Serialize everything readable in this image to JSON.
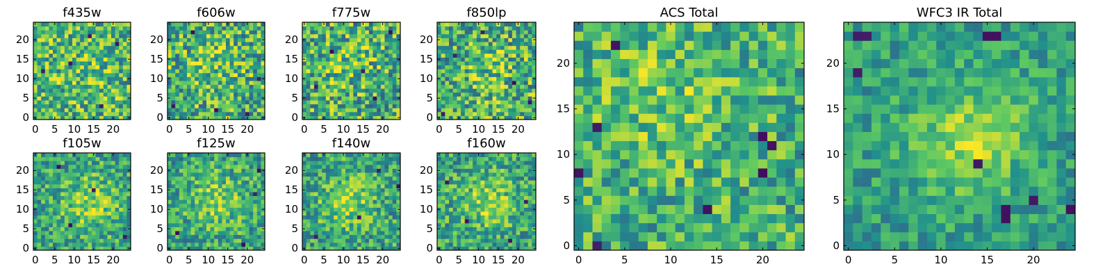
{
  "colormap": {
    "name": "viridis",
    "stops": [
      "#440154",
      "#3b528b",
      "#21918c",
      "#5ec962",
      "#fde725"
    ]
  },
  "chart_data": [
    {
      "type": "heatmap",
      "title": "f435w",
      "grid_size": 25,
      "xticks": [
        0,
        5,
        10,
        15,
        20
      ],
      "yticks": [
        0,
        5,
        10,
        15,
        20
      ],
      "xlim": [
        -0.5,
        24.5
      ],
      "ylim": [
        -0.5,
        24.5
      ],
      "value_range": [
        0,
        1
      ],
      "pattern": {
        "seed": 435,
        "mean": 0.66,
        "noise": 0.32,
        "bump": 0.05,
        "bump_center": [
          12,
          12
        ],
        "bump_sigma": 6,
        "dark_spots": [
          [
            2,
            12
          ],
          [
            9,
            14
          ],
          [
            17,
            3
          ],
          [
            21,
            19
          ],
          [
            14,
            21
          ]
        ]
      }
    },
    {
      "type": "heatmap",
      "title": "f606w",
      "grid_size": 25,
      "xticks": [
        0,
        5,
        10,
        15,
        20
      ],
      "yticks": [
        0,
        5,
        10,
        15,
        20
      ],
      "xlim": [
        -0.5,
        24.5
      ],
      "ylim": [
        -0.5,
        24.5
      ],
      "value_range": [
        0,
        1
      ],
      "pattern": {
        "seed": 606,
        "mean": 0.64,
        "noise": 0.34,
        "bump": 0.1,
        "bump_center": [
          11,
          14
        ],
        "bump_sigma": 5,
        "dark_spots": [
          [
            1,
            3
          ],
          [
            6,
            22
          ],
          [
            20,
            1
          ],
          [
            23,
            10
          ],
          [
            12,
            2
          ]
        ]
      }
    },
    {
      "type": "heatmap",
      "title": "f775w",
      "grid_size": 25,
      "xticks": [
        0,
        5,
        10,
        15,
        20
      ],
      "yticks": [
        0,
        5,
        10,
        15,
        20
      ],
      "xlim": [
        -0.5,
        24.5
      ],
      "ylim": [
        -0.5,
        24.5
      ],
      "value_range": [
        0,
        1
      ],
      "pattern": {
        "seed": 775,
        "mean": 0.63,
        "noise": 0.34,
        "bump": 0.1,
        "bump_center": [
          11,
          13
        ],
        "bump_sigma": 5,
        "dark_spots": [
          [
            3,
            8
          ],
          [
            7,
            17
          ],
          [
            18,
            5
          ],
          [
            22,
            22
          ],
          [
            15,
            12
          ]
        ]
      }
    },
    {
      "type": "heatmap",
      "title": "f850lp",
      "grid_size": 25,
      "xticks": [
        0,
        5,
        10,
        15,
        20
      ],
      "yticks": [
        0,
        5,
        10,
        15,
        20
      ],
      "xlim": [
        -0.5,
        24.5
      ],
      "ylim": [
        -0.5,
        24.5
      ],
      "value_range": [
        0,
        1
      ],
      "pattern": {
        "seed": 850,
        "mean": 0.63,
        "noise": 0.34,
        "bump": 0.1,
        "bump_center": [
          12,
          12
        ],
        "bump_sigma": 5,
        "dark_spots": [
          [
            1,
            1
          ],
          [
            11,
            22
          ],
          [
            19,
            9
          ],
          [
            4,
            16
          ],
          [
            23,
            4
          ]
        ]
      }
    },
    {
      "type": "heatmap",
      "title": "f105w",
      "grid_size": 25,
      "xticks": [
        0,
        5,
        10,
        15,
        20
      ],
      "yticks": [
        0,
        5,
        10,
        15,
        20
      ],
      "xlim": [
        -0.5,
        24.5
      ],
      "ylim": [
        -0.5,
        24.5
      ],
      "value_range": [
        0,
        1
      ],
      "pattern": {
        "seed": 105,
        "mean": 0.58,
        "noise": 0.26,
        "bump": 0.25,
        "bump_center": [
          14,
          12
        ],
        "bump_sigma": 5,
        "dark_spots": [
          [
            23,
            3
          ],
          [
            9,
            6
          ],
          [
            15,
            15
          ],
          [
            6,
            21
          ]
        ]
      }
    },
    {
      "type": "heatmap",
      "title": "f125w",
      "grid_size": 25,
      "xticks": [
        0,
        5,
        10,
        15,
        20
      ],
      "yticks": [
        0,
        5,
        10,
        15,
        20
      ],
      "xlim": [
        -0.5,
        24.5
      ],
      "ylim": [
        -0.5,
        24.5
      ],
      "value_range": [
        0,
        1
      ],
      "pattern": {
        "seed": 125,
        "mean": 0.58,
        "noise": 0.26,
        "bump": 0.25,
        "bump_center": [
          12,
          12
        ],
        "bump_sigma": 5,
        "dark_spots": [
          [
            22,
            14
          ],
          [
            23,
            20
          ],
          [
            2,
            4
          ],
          [
            19,
            1
          ]
        ]
      }
    },
    {
      "type": "heatmap",
      "title": "f140w",
      "grid_size": 25,
      "xticks": [
        0,
        5,
        10,
        15,
        20
      ],
      "yticks": [
        0,
        5,
        10,
        15,
        20
      ],
      "xlim": [
        -0.5,
        24.5
      ],
      "ylim": [
        -0.5,
        24.5
      ],
      "value_range": [
        0,
        1
      ],
      "pattern": {
        "seed": 140,
        "mean": 0.58,
        "noise": 0.26,
        "bump": 0.25,
        "bump_center": [
          11,
          12
        ],
        "bump_sigma": 5,
        "dark_spots": [
          [
            19,
            20
          ],
          [
            3,
            3
          ],
          [
            24,
            16
          ],
          [
            14,
            8
          ]
        ]
      }
    },
    {
      "type": "heatmap",
      "title": "f160w",
      "grid_size": 25,
      "xticks": [
        0,
        5,
        10,
        15,
        20
      ],
      "yticks": [
        0,
        5,
        10,
        15,
        20
      ],
      "xlim": [
        -0.5,
        24.5
      ],
      "ylim": [
        -0.5,
        24.5
      ],
      "value_range": [
        0,
        1
      ],
      "pattern": {
        "seed": 160,
        "mean": 0.58,
        "noise": 0.26,
        "bump": 0.25,
        "bump_center": [
          12,
          12
        ],
        "bump_sigma": 5,
        "dark_spots": [
          [
            22,
            12
          ],
          [
            18,
            2
          ],
          [
            7,
            7
          ],
          [
            2,
            17
          ]
        ]
      }
    },
    {
      "type": "heatmap",
      "title": "ACS Total",
      "grid_size": 25,
      "xticks": [
        0,
        5,
        10,
        15,
        20
      ],
      "yticks": [
        0,
        5,
        10,
        15,
        20
      ],
      "xlim": [
        -0.5,
        24.5
      ],
      "ylim": [
        -0.5,
        24.5
      ],
      "value_range": [
        0,
        1
      ],
      "pattern": {
        "seed": 7,
        "mean": 0.63,
        "noise": 0.26,
        "bump": 0.12,
        "bump_center": [
          9,
          16
        ],
        "bump_sigma": 6,
        "dark_spots": [
          [
            2,
            13
          ],
          [
            20,
            12
          ],
          [
            21,
            11
          ],
          [
            14,
            4
          ],
          [
            0,
            8
          ],
          [
            2,
            0
          ],
          [
            20,
            8
          ],
          [
            4,
            22
          ]
        ]
      }
    },
    {
      "type": "heatmap",
      "title": "WFC3 IR Total",
      "grid_size": 25,
      "xticks": [
        0,
        5,
        10,
        15,
        20
      ],
      "yticks": [
        0,
        5,
        10,
        15,
        20
      ],
      "xlim": [
        -0.5,
        24.5
      ],
      "ylim": [
        -0.5,
        24.5
      ],
      "value_range": [
        0,
        1
      ],
      "pattern": {
        "seed": 11,
        "mean": 0.55,
        "noise": 0.18,
        "bump": 0.3,
        "bump_center": [
          13,
          12
        ],
        "bump_sigma": 4.5,
        "dark_spots": [
          [
            1,
            23
          ],
          [
            2,
            23
          ],
          [
            15,
            23
          ],
          [
            16,
            23
          ],
          [
            17,
            4
          ],
          [
            17,
            3
          ],
          [
            24,
            4
          ],
          [
            20,
            5
          ],
          [
            1,
            19
          ],
          [
            14,
            9
          ]
        ]
      }
    }
  ]
}
